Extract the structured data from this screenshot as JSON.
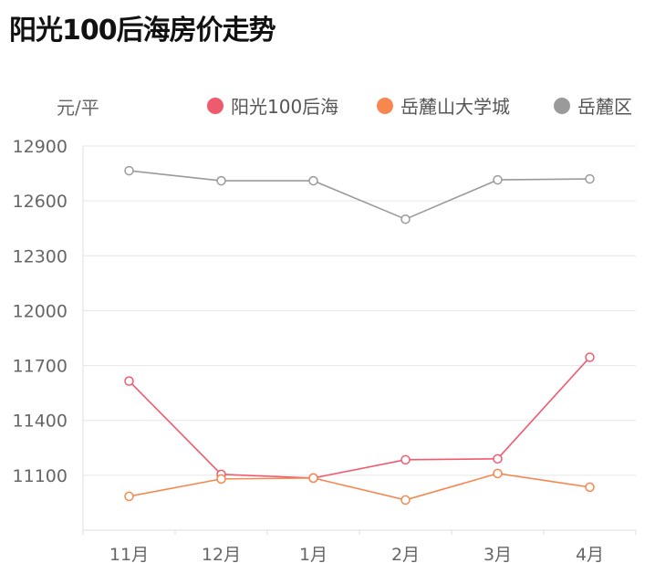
{
  "chart_data": {
    "type": "line",
    "title": "阳光100后海房价走势",
    "ylabel": "元/平",
    "xlabel": "",
    "categories": [
      "11月",
      "12月",
      "1月",
      "2月",
      "3月",
      "4月"
    ],
    "ylim": [
      10800,
      12900
    ],
    "yticks": [
      11100,
      11400,
      11700,
      12000,
      12300,
      12600,
      12900
    ],
    "grid": true,
    "legend_position": "top-right",
    "series": [
      {
        "name": "阳光100后海",
        "color": "#f05a6e",
        "values": [
          11615,
          11105,
          11085,
          11185,
          11190,
          11745
        ]
      },
      {
        "name": "岳麓山大学城",
        "color": "#f7874f",
        "values": [
          10985,
          11080,
          11085,
          10965,
          11110,
          11035
        ]
      },
      {
        "name": "岳麓区",
        "color": "#9a9a9a",
        "values": [
          12765,
          12710,
          12710,
          12500,
          12715,
          12720
        ]
      }
    ]
  }
}
